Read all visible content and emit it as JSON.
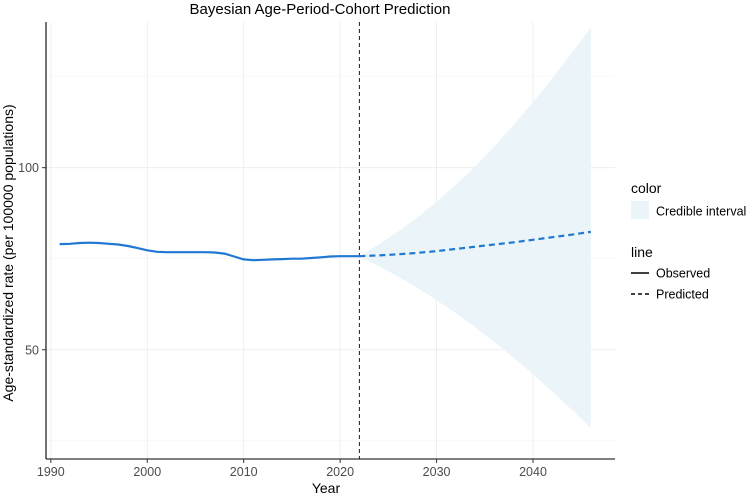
{
  "chart_data": {
    "type": "line",
    "title": "Bayesian Age-Period-Cohort Prediction",
    "xlabel": "Year",
    "ylabel": "Age-standardized rate (per 100000 populations)",
    "xlim": [
      1989.5,
      2048.5
    ],
    "ylim": [
      20,
      140
    ],
    "x_ticks": [
      1990,
      2000,
      2010,
      2020,
      2030,
      2040
    ],
    "x_tick_labels": [
      "1990",
      "2000",
      "2010",
      "2020",
      "2030",
      "2040"
    ],
    "y_ticks": [
      50,
      100
    ],
    "y_tick_labels": [
      "50",
      "100"
    ],
    "y_minor_gridlines": [
      25,
      75,
      125
    ],
    "grid": true,
    "vline_x": 2022,
    "colors": {
      "line": "#1f78d1",
      "ribbon": "#eaf4f9",
      "vline": "#333333",
      "grid": "#ebebeb",
      "axis": "#000000"
    },
    "series": [
      {
        "name": "Observed",
        "linestyle": "solid",
        "x": [
          1991,
          1992,
          1993,
          1994,
          1995,
          1996,
          1997,
          1998,
          1999,
          2000,
          2001,
          2002,
          2003,
          2004,
          2005,
          2006,
          2007,
          2008,
          2009,
          2010,
          2011,
          2012,
          2013,
          2014,
          2015,
          2016,
          2017,
          2018,
          2019,
          2020,
          2021,
          2022
        ],
        "y": [
          79.0,
          79.1,
          79.3,
          79.4,
          79.3,
          79.1,
          78.9,
          78.5,
          77.9,
          77.3,
          76.9,
          76.8,
          76.8,
          76.8,
          76.8,
          76.8,
          76.7,
          76.4,
          75.6,
          74.8,
          74.6,
          74.7,
          74.8,
          74.9,
          75.0,
          75.0,
          75.2,
          75.4,
          75.6,
          75.7,
          75.7,
          75.7
        ]
      },
      {
        "name": "Predicted",
        "linestyle": "dashed",
        "x": [
          2022,
          2024,
          2026,
          2028,
          2030,
          2032,
          2034,
          2036,
          2038,
          2040,
          2042,
          2044,
          2046
        ],
        "y": [
          75.7,
          75.9,
          76.2,
          76.6,
          77.1,
          77.7,
          78.3,
          78.9,
          79.5,
          80.2,
          80.9,
          81.6,
          82.4
        ]
      }
    ],
    "ribbon": {
      "name": "Credible interval",
      "x": [
        2022,
        2024,
        2026,
        2028,
        2030,
        2032,
        2034,
        2036,
        2038,
        2040,
        2042,
        2044,
        2046
      ],
      "lower": [
        75.7,
        73.0,
        70.1,
        67.0,
        63.6,
        60.0,
        56.2,
        52.1,
        47.8,
        43.3,
        38.5,
        33.6,
        28.5
      ],
      "upper": [
        75.7,
        78.9,
        82.4,
        86.3,
        90.6,
        95.3,
        100.4,
        105.9,
        111.8,
        118.0,
        124.5,
        131.4,
        138.5
      ]
    },
    "legend": {
      "placement": "right",
      "groups": [
        {
          "title": "color",
          "items": [
            {
              "label": "Credible interval",
              "kind": "fill"
            }
          ]
        },
        {
          "title": "line",
          "items": [
            {
              "label": "Observed",
              "kind": "solid"
            },
            {
              "label": "Predicted",
              "kind": "dashed"
            }
          ]
        }
      ]
    }
  }
}
